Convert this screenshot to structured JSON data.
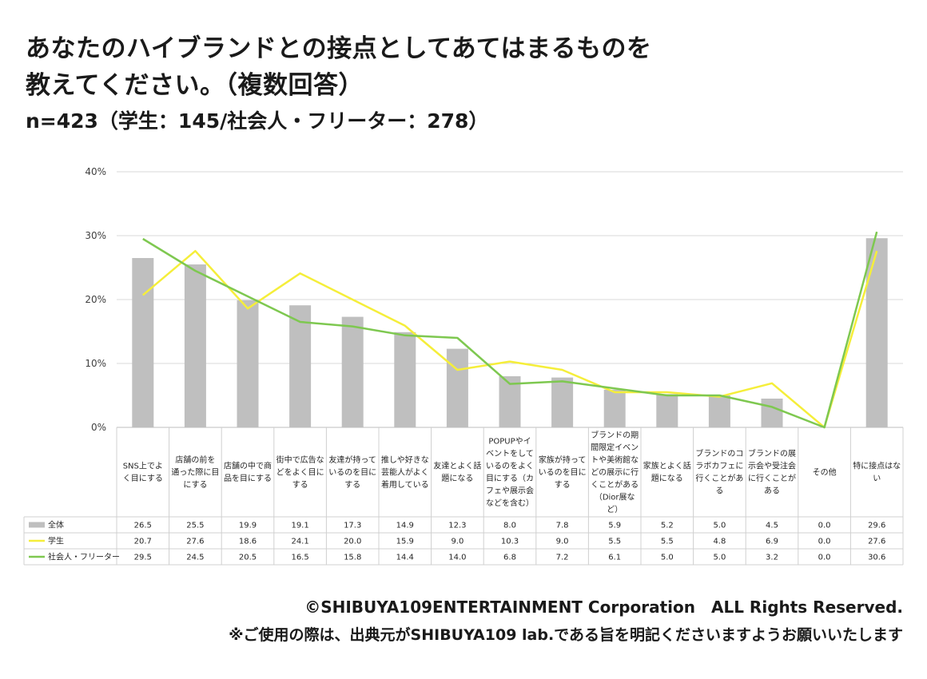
{
  "title": {
    "line1": "あなたのハイブランドとの接点としてあてはまるものを",
    "line2": "教えてください。（複数回答）"
  },
  "subtitle": "n=423（学生：145/社会人・フリーター：278）",
  "footer": {
    "copyright": "©SHIBUYA109ENTERTAINMENT Corporation　ALL Rights Reserved.",
    "note": "※ご使用の際は、出典元がSHIBUYA109 lab.である旨を明記くださいますようお願いいたします"
  },
  "chart_data": {
    "type": "bar",
    "ylim": [
      0,
      40
    ],
    "yticks": [
      "0%",
      "10%",
      "20%",
      "30%",
      "40%"
    ],
    "grid": true,
    "legend": "table",
    "categories": [
      [
        "SNS上でよ",
        "く目にする"
      ],
      [
        "店舗の前を",
        "通った際に目",
        "にする"
      ],
      [
        "店舗の中で商",
        "品を目にする"
      ],
      [
        "街中で広告な",
        "どをよく目に",
        "する"
      ],
      [
        "友達が持って",
        "いるのを目に",
        "する"
      ],
      [
        "推しや好きな",
        "芸能人がよく",
        "着用している"
      ],
      [
        "友達とよく話",
        "題になる"
      ],
      [
        "POPUPやイ",
        "ベントをして",
        "いるのをよく",
        "目にする（カ",
        "フェや展示会",
        "などを含む）"
      ],
      [
        "家族が持って",
        "いるのを目に",
        "する"
      ],
      [
        "ブランドの期",
        "間限定イベン",
        "トや美術館な",
        "どの展示に行",
        "くことがある",
        "（Dior展な",
        "ど）"
      ],
      [
        "家族とよく話",
        "題になる"
      ],
      [
        "ブランドのコ",
        "ラボカフェに",
        "行くことがあ",
        "る"
      ],
      [
        "ブランドの展",
        "示会や受注会",
        "に行くことが",
        "ある"
      ],
      [
        "その他"
      ],
      [
        "特に接点はな",
        "い"
      ]
    ],
    "series": [
      {
        "name": "全体",
        "kind": "bar",
        "color": "#bfbfbf",
        "values": [
          26.5,
          25.5,
          19.9,
          19.1,
          17.3,
          14.9,
          12.3,
          8.0,
          7.8,
          5.9,
          5.2,
          5.0,
          4.5,
          0.0,
          29.6
        ]
      },
      {
        "name": "学生",
        "kind": "line",
        "color": "#f5ee3a",
        "values": [
          20.7,
          27.6,
          18.6,
          24.1,
          20.0,
          15.9,
          9.0,
          10.3,
          9.0,
          5.5,
          5.5,
          4.8,
          6.9,
          0.0,
          27.6
        ]
      },
      {
        "name": "社会人・フリーター",
        "kind": "line",
        "color": "#7ec850",
        "values": [
          29.5,
          24.5,
          20.5,
          16.5,
          15.8,
          14.4,
          14.0,
          6.8,
          7.2,
          6.1,
          5.0,
          5.0,
          3.2,
          0.0,
          30.6
        ]
      }
    ]
  }
}
